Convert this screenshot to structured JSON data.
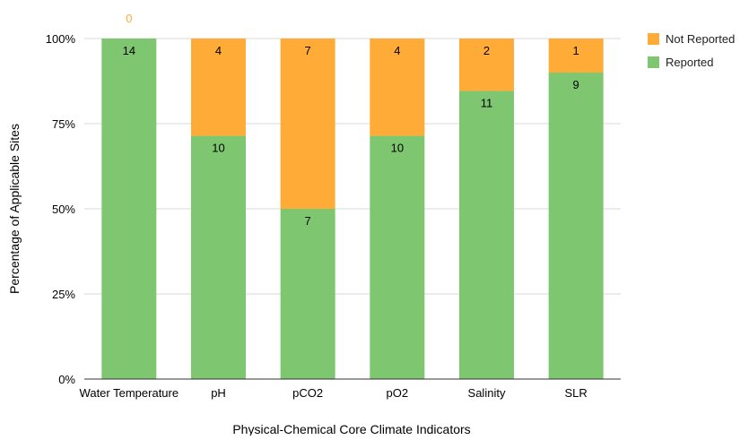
{
  "chart_data": {
    "type": "bar",
    "stacked": true,
    "percent_stacked": true,
    "title": "",
    "xlabel": "Physical-Chemical Core Climate Indicators",
    "ylabel": "Percentage of Applicable Sites",
    "categories": [
      "Water Temperature",
      "pH",
      "pCO2",
      "pO2",
      "Salinity",
      "SLR"
    ],
    "y_ticks": [
      "0%",
      "25%",
      "50%",
      "75%",
      "100%"
    ],
    "ylim": [
      0,
      100
    ],
    "grid": true,
    "legend_position": "top-right",
    "series": [
      {
        "name": "Reported",
        "color": "#7ec670",
        "label_color": "#000000",
        "values": [
          14,
          10,
          7,
          10,
          11,
          9
        ]
      },
      {
        "name": "Not Reported",
        "color": "#ffab38",
        "label_color": "#000000",
        "values": [
          0,
          4,
          7,
          4,
          2,
          1
        ]
      }
    ],
    "zero_label_color": "#ffab38"
  }
}
